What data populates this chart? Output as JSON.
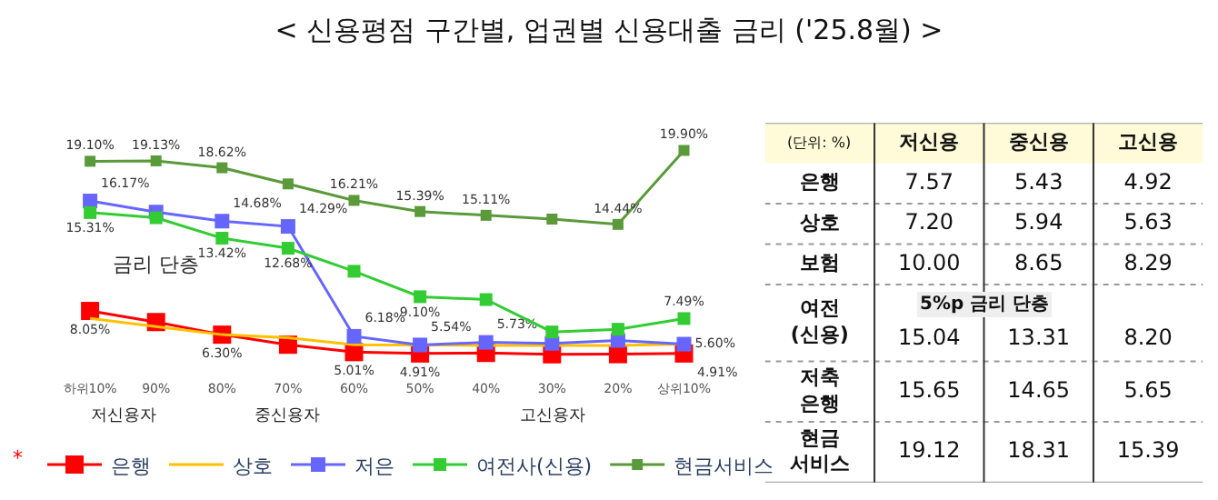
{
  "chart_data": [
    {
      "type": "line",
      "title": "< 신용평점 구간별, 업권별 신용대출 금리 ('25.8월) >",
      "categories": [
        "하위10%",
        "90%",
        "80%",
        "70%",
        "60%",
        "50%",
        "40%",
        "30%",
        "20%",
        "상위10%"
      ],
      "series": [
        {
          "name": "은행",
          "color": "#ff0000",
          "marker": "square",
          "values": [
            8.05,
            7.23,
            6.3,
            5.56,
            5.01,
            4.91,
            4.95,
            4.85,
            4.86,
            4.91
          ],
          "value_labels": [
            "8.05%",
            null,
            "6.30%",
            null,
            "5.01%",
            "4.91%",
            null,
            null,
            null,
            "4.91%"
          ]
        },
        {
          "name": "상호",
          "color": "#ffc000",
          "marker": "none",
          "values": [
            7.5,
            6.9,
            6.3,
            6.07,
            5.56,
            5.54,
            5.5,
            5.5,
            5.5,
            5.6
          ]
        },
        {
          "name": "저은",
          "color": "#6666ff",
          "marker": "square",
          "values": [
            16.17,
            15.35,
            14.68,
            14.29,
            6.18,
            5.54,
            5.73,
            5.66,
            5.87,
            5.6
          ],
          "value_labels": [
            "16.17%",
            null,
            "14.68%",
            "14.29%",
            "6.18%",
            "5.54%",
            "5.73%",
            null,
            null,
            "5.60%"
          ]
        },
        {
          "name": "여전사(신용)",
          "color": "#33cc33",
          "marker": "square",
          "values": [
            15.31,
            14.93,
            13.42,
            12.68,
            10.98,
            9.1,
            8.89,
            6.5,
            6.7,
            7.49
          ],
          "value_labels": [
            "15.31%",
            null,
            "13.42%",
            "12.68%",
            null,
            "9.10%",
            null,
            null,
            null,
            "7.49%"
          ]
        },
        {
          "name": "현금서비스",
          "color": "#5a9a3a",
          "marker": "square",
          "values": [
            19.1,
            19.13,
            18.62,
            17.43,
            16.21,
            15.39,
            15.11,
            14.83,
            14.44,
            19.9
          ],
          "value_labels": [
            "19.10%",
            "19.13%",
            "18.62%",
            null,
            "16.21%",
            "15.39%",
            "15.11%",
            null,
            "14.44%",
            "19.90%"
          ]
        }
      ],
      "legend": "bottom",
      "legend_title": "*",
      "annotations": [
        "금리 단층",
        "저신용자",
        "중신용자",
        "고신용자"
      ]
    },
    {
      "type": "heatmap",
      "legend_title": "(단위: %)",
      "categories": [
        "저신용",
        "중신용",
        "고신용"
      ],
      "y_categories": [
        "은행",
        "상호",
        "보험",
        "여전\n(신용)",
        "저축\n은행",
        "현금\n서비스"
      ],
      "cells": [
        [
          7.57,
          5.43,
          4.92
        ],
        [
          7.2,
          5.94,
          5.63
        ],
        [
          10.0,
          8.65,
          8.29
        ],
        [
          15.04,
          13.31,
          8.2
        ],
        [
          15.65,
          14.65,
          5.65
        ],
        [
          19.12,
          18.31,
          15.39
        ]
      ],
      "cell_labels": [
        [
          "7.57",
          "5.43",
          "4.92"
        ],
        [
          "7.20",
          "5.94",
          "5.63"
        ],
        [
          "10.00",
          "8.65",
          "8.29"
        ],
        [
          "15.04",
          "13.31",
          "8.20"
        ],
        [
          "15.65",
          "14.65",
          "5.65"
        ],
        [
          "19.12",
          "18.31",
          "15.39"
        ]
      ],
      "data_labels": true,
      "annotations": [
        "5%p 금리 단층"
      ]
    }
  ]
}
